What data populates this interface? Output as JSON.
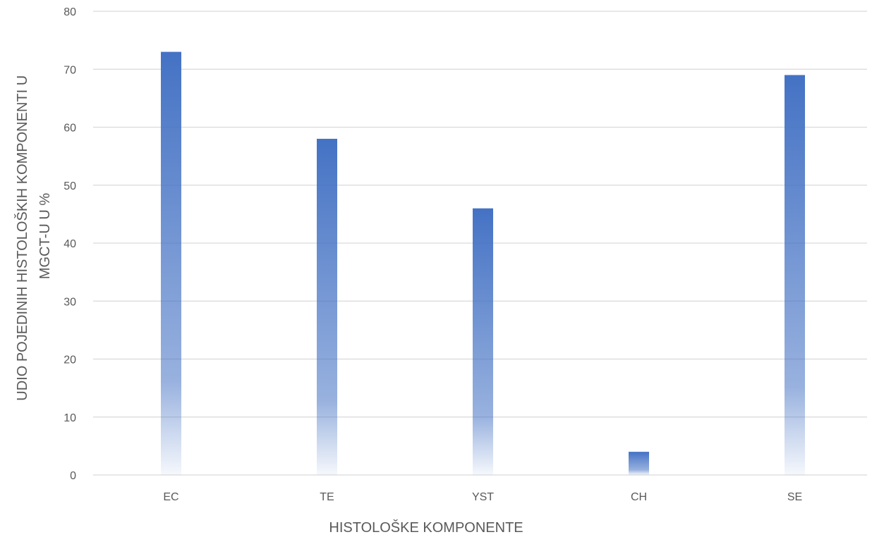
{
  "chart_data": {
    "type": "bar",
    "categories": [
      "EC",
      "TE",
      "YST",
      "CH",
      "SE"
    ],
    "values": [
      73,
      58,
      46,
      4,
      69
    ],
    "title": "",
    "xlabel": "HISTOLOŠKE  KOMPONENTE",
    "ylabel_lines": [
      "UDIO POJEDINIH HISTOLOŠKIH KOMPONENTI U",
      "MGCT-U U %"
    ],
    "ylim": [
      0,
      80
    ],
    "yticks": [
      0,
      10,
      20,
      30,
      40,
      50,
      60,
      70,
      80
    ],
    "grid": true,
    "legend": "none",
    "bar_color": "#4472c4"
  }
}
